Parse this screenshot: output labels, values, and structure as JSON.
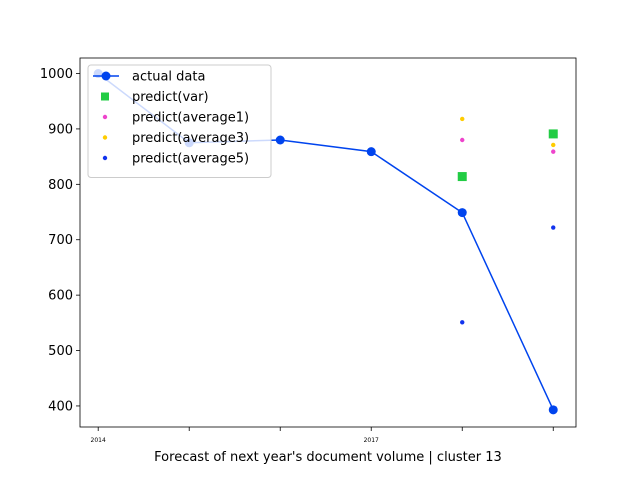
{
  "chart_data": {
    "type": "line",
    "xlabel": "Forecast of next year's document volume | cluster 13",
    "ylabel": "",
    "x_positions": [
      2014,
      2015,
      2016,
      2017,
      2018,
      2019
    ],
    "x_tick_labels": [
      "2014",
      "",
      "",
      "2017",
      "",
      ""
    ],
    "xlim": [
      2013.8,
      2019.25
    ],
    "ylim": [
      362,
      1028
    ],
    "y_ticks": [
      400,
      500,
      600,
      700,
      800,
      900,
      1000
    ],
    "grid": false,
    "legend_position": "top-left",
    "series": [
      {
        "name": "actual data",
        "kind": "line-marker",
        "color": "#0044ee",
        "points": [
          [
            2014,
            1000
          ],
          [
            2015,
            875
          ],
          [
            2016,
            880
          ],
          [
            2017,
            859
          ],
          [
            2018,
            749
          ],
          [
            2019,
            393
          ]
        ]
      },
      {
        "name": "predict(var)",
        "kind": "square",
        "color": "#22cc44",
        "points": [
          [
            2018,
            814
          ],
          [
            2019,
            891
          ]
        ]
      },
      {
        "name": "predict(average1)",
        "kind": "dot",
        "color": "#ee44cc",
        "points": [
          [
            2018,
            880
          ],
          [
            2019,
            859
          ]
        ]
      },
      {
        "name": "predict(average3)",
        "kind": "dot",
        "color": "#ffcc00",
        "points": [
          [
            2018,
            918
          ],
          [
            2019,
            871
          ]
        ]
      },
      {
        "name": "predict(average5)",
        "kind": "dot",
        "color": "#1133ee",
        "points": [
          [
            2018,
            551
          ],
          [
            2019,
            722
          ]
        ]
      }
    ]
  }
}
